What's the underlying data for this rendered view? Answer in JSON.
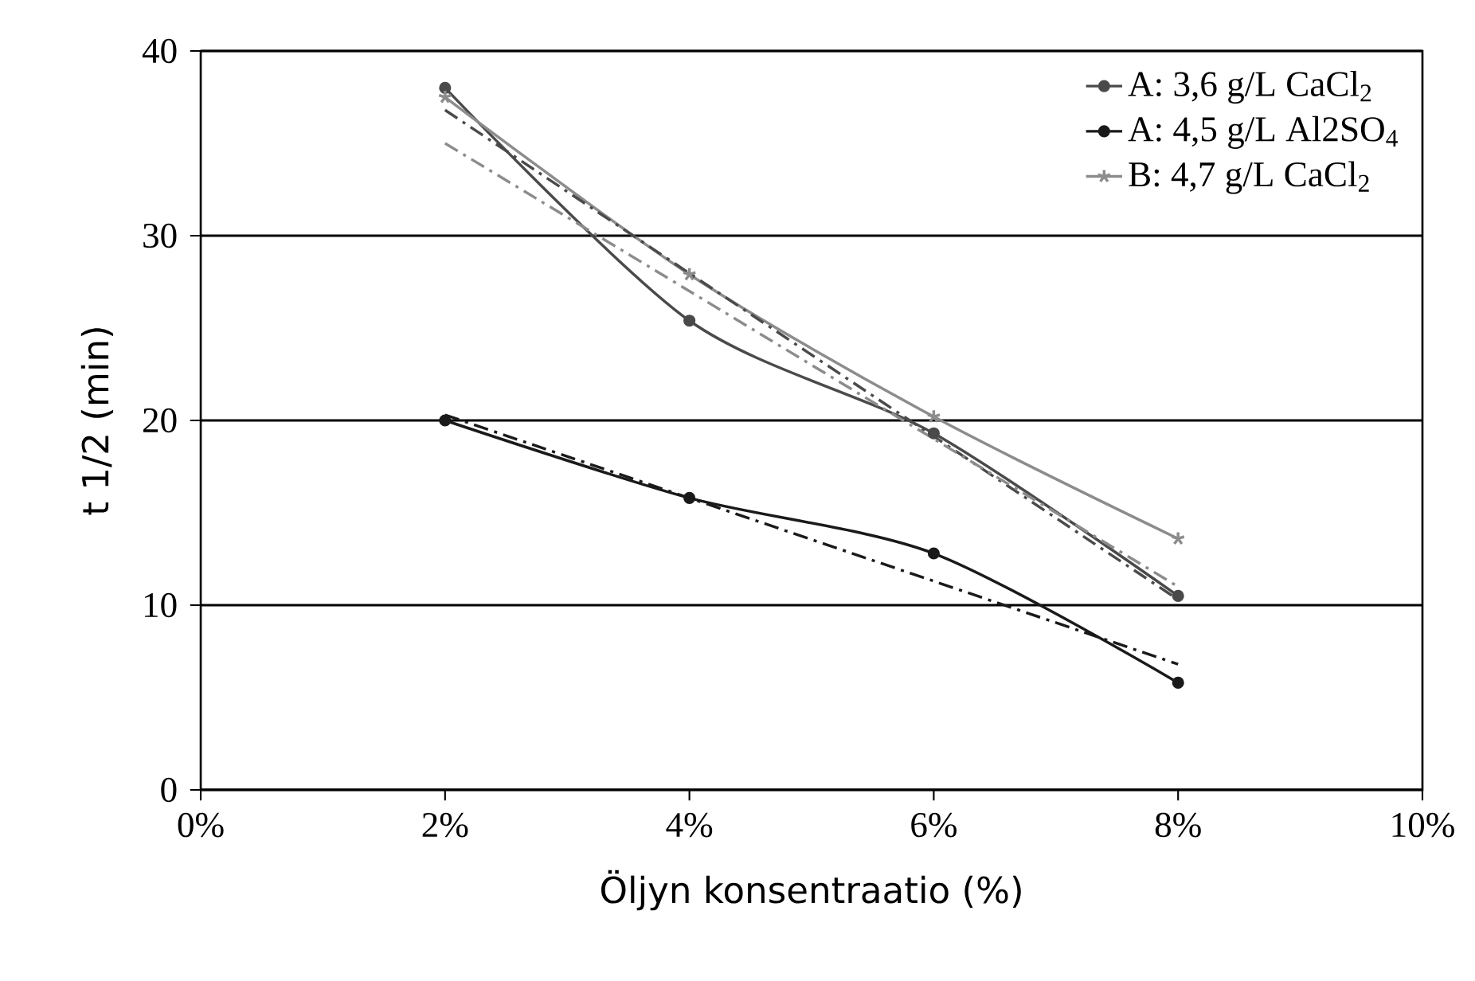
{
  "chart_data": {
    "type": "line",
    "xlabel": "Öljyn konsentraatio (%)",
    "ylabel": "t 1/2 (min)",
    "xlim": [
      0,
      10
    ],
    "ylim": [
      0,
      40
    ],
    "xticks": [
      {
        "value": 0,
        "label": "0%"
      },
      {
        "value": 2,
        "label": "2%"
      },
      {
        "value": 4,
        "label": "4%"
      },
      {
        "value": 6,
        "label": "6%"
      },
      {
        "value": 8,
        "label": "8%"
      },
      {
        "value": 10,
        "label": "10%"
      }
    ],
    "yticks": [
      0,
      10,
      20,
      30,
      40
    ],
    "grid": "y",
    "legend": "top right",
    "series": [
      {
        "name": "A: 3,6 g/L CaCl$_{2}$",
        "color": "#4a4a4a",
        "x": [
          2,
          4,
          6,
          8
        ],
        "values": [
          38,
          25.4,
          19.3,
          10.5
        ],
        "marker": "circle",
        "line_style": "solid"
      },
      {
        "name": "A: 4,5 g/L Al2SO$_{4}$",
        "color": "#1a1a1a",
        "x": [
          2,
          4,
          6,
          8
        ],
        "values": [
          20,
          15.8,
          12.8,
          5.8
        ],
        "marker": "circle",
        "line_style": "solid"
      },
      {
        "name": "B: 4,7 g/L CaCl$_{2}$",
        "color": "#8c8c8c",
        "x": [
          2,
          4,
          6,
          8
        ],
        "values": [
          37.5,
          27.9,
          20.2,
          13.6
        ],
        "marker": "cross",
        "line_style": "solid"
      },
      {
        "color": "#4a4a4a",
        "x": [
          2,
          8
        ],
        "values": [
          36.8,
          10.3
        ],
        "marker": "none",
        "line_style": "dashed"
      },
      {
        "color": "#8c8c8c",
        "x": [
          2,
          8
        ],
        "values": [
          35.0,
          11.0
        ],
        "marker": "none",
        "line_style": "dashed"
      },
      {
        "color": "#1a1a1a",
        "x": [
          2,
          8
        ],
        "values": [
          20.3,
          6.8
        ],
        "marker": "none",
        "line_style": "dashed"
      }
    ]
  }
}
